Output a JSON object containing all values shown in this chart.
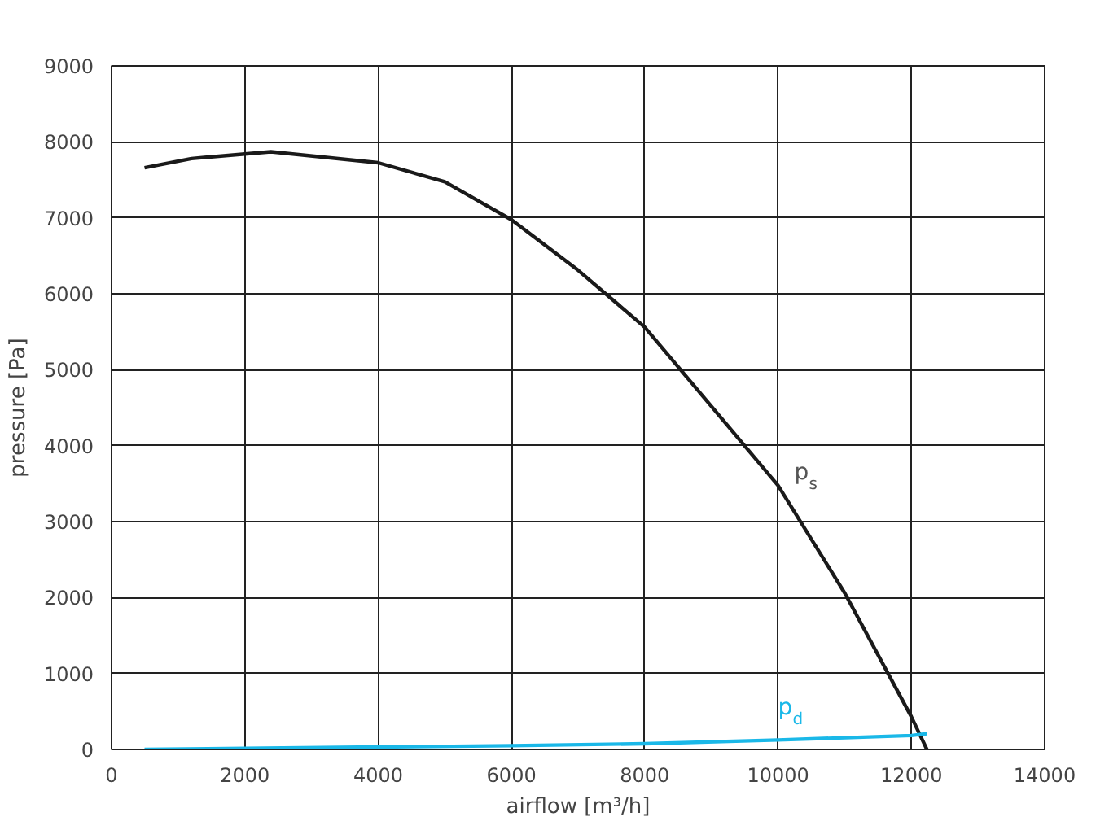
{
  "chart_data": {
    "type": "line",
    "xlabel": "airflow [m³/h]",
    "ylabel": "pressure [Pa]",
    "xlim": [
      0,
      14000
    ],
    "ylim": [
      0,
      9000
    ],
    "xticks": [
      0,
      2000,
      4000,
      6000,
      8000,
      10000,
      12000,
      14000
    ],
    "yticks": [
      0,
      1000,
      2000,
      3000,
      4000,
      5000,
      6000,
      7000,
      8000,
      9000
    ],
    "grid": true,
    "series": [
      {
        "name": "p$_{s}$",
        "color": "#1a1a1a",
        "x": [
          495,
          1200,
          2390,
          4000,
          5000,
          6000,
          7000,
          8000,
          10000,
          11000,
          12000,
          12233
        ],
        "values": [
          7660,
          7780,
          7870,
          7725,
          7475,
          6975,
          6310,
          5560,
          3475,
          2060,
          430,
          0
        ]
      },
      {
        "name": "p$_{d}$",
        "color": "#1ab8e8",
        "x": [
          495,
          6000,
          8000,
          10000,
          12000,
          12233
        ],
        "values": [
          0,
          50,
          75,
          125,
          183,
          208
        ]
      }
    ]
  }
}
